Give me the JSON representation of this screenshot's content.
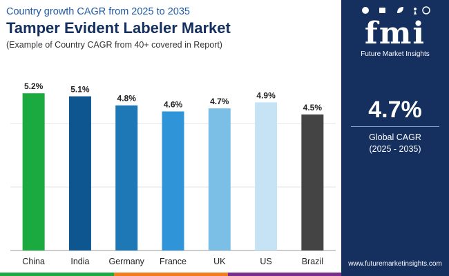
{
  "header": {
    "top_line": "Country growth CAGR from 2025 to 2035",
    "title": "Tamper Evident Labeler Market",
    "note": "(Example of Country CAGR from 40+ covered in Report)"
  },
  "chart_data": {
    "type": "bar",
    "categories": [
      "China",
      "India",
      "Germany",
      "France",
      "UK",
      "US",
      "Brazil"
    ],
    "values": [
      5.2,
      5.1,
      4.8,
      4.6,
      4.7,
      4.9,
      4.5
    ],
    "value_labels": [
      "5.2%",
      "5.1%",
      "4.8%",
      "4.6%",
      "4.7%",
      "4.9%",
      "4.5%"
    ],
    "colors": [
      "#1aaa3f",
      "#0d5690",
      "#1d78b5",
      "#2f95d8",
      "#7bbfe6",
      "#c6e3f5",
      "#444444"
    ],
    "ylim": [
      0,
      6.3
    ],
    "gridlines": [
      2.1,
      4.2
    ],
    "title": "Tamper Evident Labeler Market",
    "xlabel": "",
    "ylabel": "",
    "grid": true,
    "legend": "none"
  },
  "side_panel": {
    "logo_text": "fmi",
    "brand": "Future Market Insights",
    "kpi_value": "4.7%",
    "kpi_label": "Global CAGR",
    "kpi_period": "(2025 - 2035)",
    "website": "www.futuremarketinsights.com"
  },
  "colors": {
    "panel": "#15305e",
    "title": "#15305e",
    "accent": "#1f5aa6",
    "strip": [
      "#1aaa3f",
      "#f47c20",
      "#7b2d8e"
    ]
  }
}
